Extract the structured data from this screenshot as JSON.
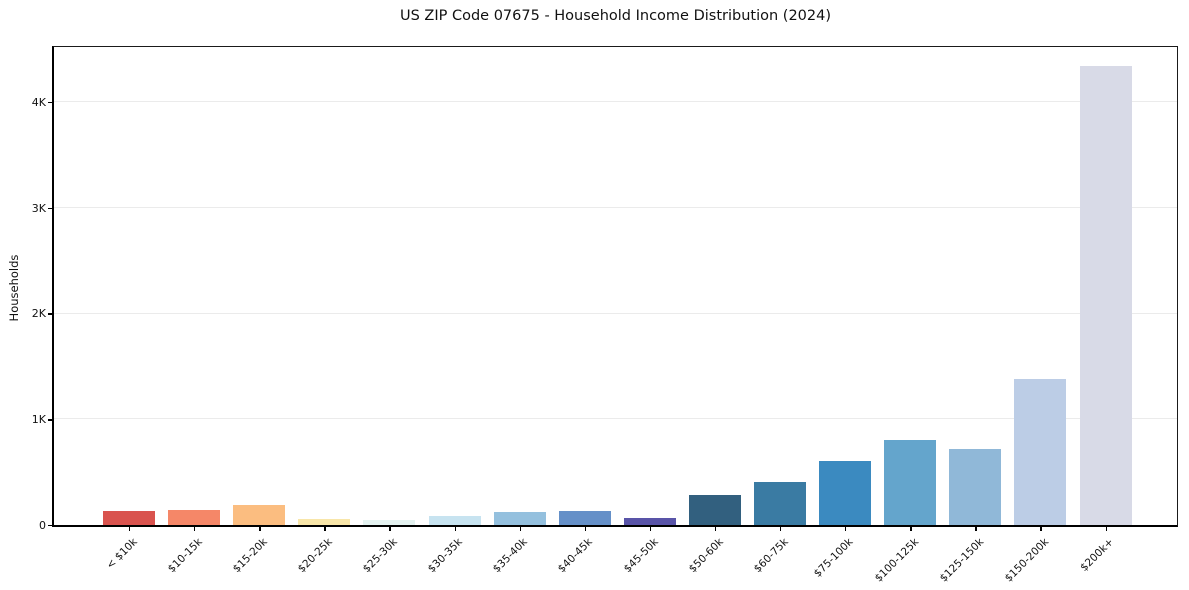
{
  "chart_data": {
    "type": "bar",
    "title": "US ZIP Code 07675 - Household Income Distribution (2024)",
    "xlabel": "",
    "ylabel": "Households",
    "ylim": [
      0,
      4520
    ],
    "grid": "horizontal",
    "grid_color": "#ebebeb",
    "legend_position": "none",
    "background_color": "#ffffff",
    "yticks": [
      {
        "value": 0,
        "label": "0"
      },
      {
        "value": 1000,
        "label": "1K"
      },
      {
        "value": 2000,
        "label": "2K"
      },
      {
        "value": 3000,
        "label": "3K"
      },
      {
        "value": 4000,
        "label": "4K"
      }
    ],
    "categories": [
      "< $10k",
      "$10-15k",
      "$15-20k",
      "$20-25k",
      "$25-30k",
      "$30-35k",
      "$35-40k",
      "$40-45k",
      "$45-50k",
      "$50-60k",
      "$60-75k",
      "$75-100k",
      "$100-125k",
      "$125-150k",
      "$150-200k",
      "$200k+"
    ],
    "values": [
      130,
      140,
      185,
      60,
      50,
      85,
      120,
      130,
      70,
      285,
      405,
      605,
      805,
      720,
      1380,
      4340
    ],
    "bar_colors": [
      "#d9534e",
      "#f58768",
      "#fbbd80",
      "#f8e6a9",
      "#e4f2f0",
      "#c7e3f0",
      "#94c0de",
      "#6590c8",
      "#5954a8",
      "#32607f",
      "#3a7ba3",
      "#3b8ac0",
      "#64a5cc",
      "#90b8d8",
      "#bccde6",
      "#d8dae7"
    ]
  }
}
